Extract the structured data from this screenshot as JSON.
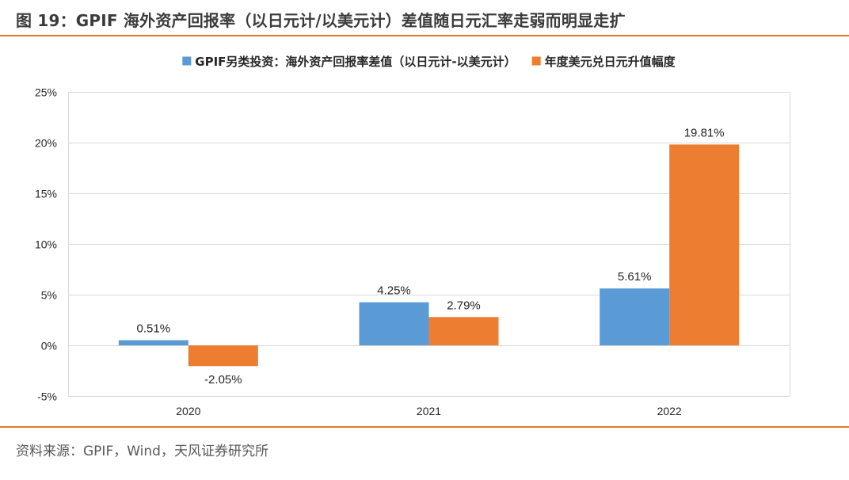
{
  "figure": {
    "title": "图 19：GPIF 海外资产回报率（以日元计/以美元计）差值随日元汇率走弱而明显走扩",
    "source": "资料来源：GPIF，Wind，天风证券研究所"
  },
  "colors": {
    "accent": "#e87722",
    "series_blue": "#5b9bd5",
    "series_orange": "#ed7d31"
  },
  "chart_data": {
    "type": "bar",
    "categories": [
      "2020",
      "2021",
      "2022"
    ],
    "series": [
      {
        "name": "GPIF另类投资：海外资产回报率差值（以日元计-以美元计）",
        "values": [
          0.51,
          4.25,
          5.61
        ],
        "labels": [
          "0.51%",
          "4.25%",
          "5.61%"
        ],
        "color": "#5b9bd5"
      },
      {
        "name": "年度美元兑日元升值幅度",
        "values": [
          -2.05,
          2.79,
          19.81
        ],
        "labels": [
          "-2.05%",
          "2.79%",
          "19.81%"
        ],
        "color": "#ed7d31"
      }
    ],
    "ylim": [
      -5,
      25
    ],
    "yticks": [
      -5,
      0,
      5,
      10,
      15,
      20,
      25
    ],
    "ytick_labels": [
      "-5%",
      "0%",
      "5%",
      "10%",
      "15%",
      "20%",
      "25%"
    ],
    "grid": true,
    "legend_position": "top-center",
    "title": "",
    "xlabel": "",
    "ylabel": ""
  }
}
